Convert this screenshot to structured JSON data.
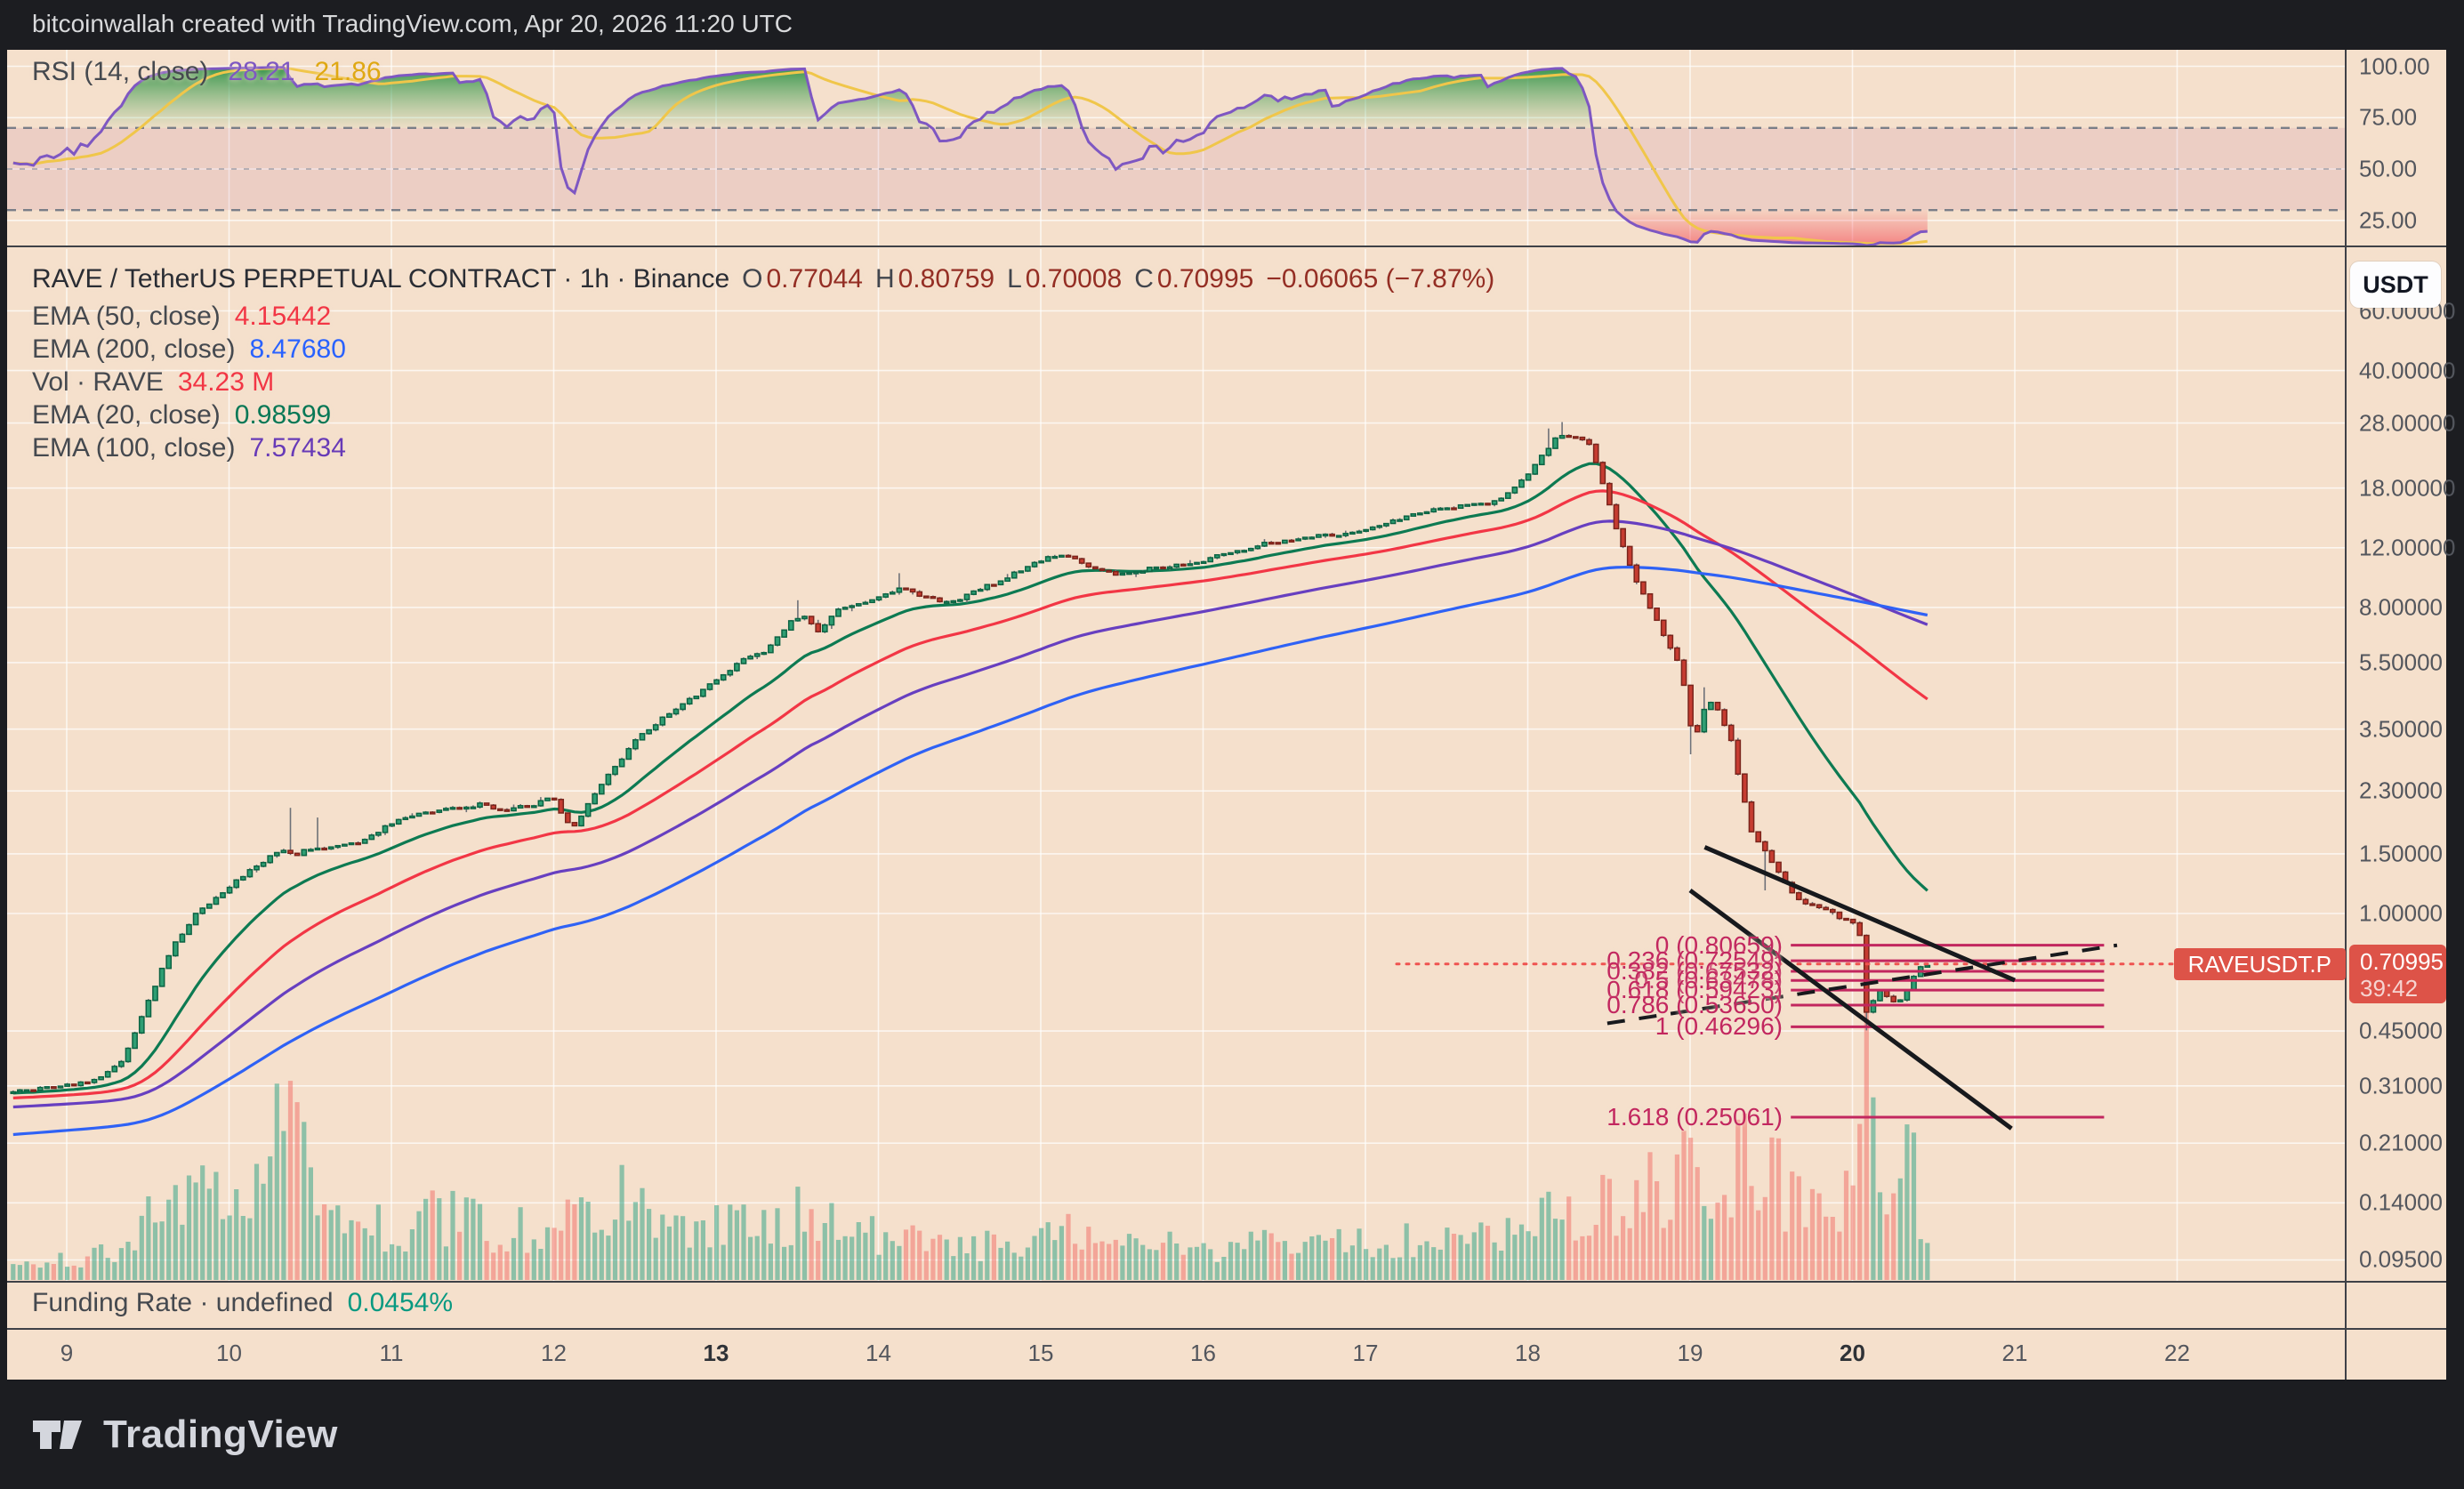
{
  "colors": {
    "panel": "#f5e0cc",
    "frame": "#1c1d21",
    "grid": "rgba(255,255,255,0.7)",
    "sep": "#3f4147",
    "up": "#2f9e73",
    "up_border": "#0c6343",
    "down": "#c63c31",
    "down_border": "#7a241b",
    "wick": "#6e7178",
    "vol_up": "rgba(54,166,137,0.55)",
    "vol_down": "rgba(240,116,110,0.55)",
    "rsi_line": "#7e57c2",
    "rsi_ma": "#f0c64a",
    "rsi_band": "rgba(171,80,141,0.12)",
    "rsi_levels": "#7a7e88",
    "fib": "#c2275f",
    "price_line": "#ef5350",
    "badge": "#dd5348",
    "axis_text": "#53565d",
    "legend_text": "#45494f",
    "title_text": "#2a2d34",
    "ohlc_value": "#942e24",
    "funding_green": "#089981"
  },
  "top_bar": {
    "text": "bitcoinwallah created with TradingView.com, Apr 20, 2026 11:20 UTC"
  },
  "rsi_pane": {
    "legend_label": "RSI (14, close)",
    "value": "28.21",
    "ma_value": "21.86",
    "axis_labels": [
      {
        "text": "100.00",
        "value": 100
      },
      {
        "text": "75.00",
        "value": 75
      },
      {
        "text": "50.00",
        "value": 50
      },
      {
        "text": "25.00",
        "value": 25
      }
    ]
  },
  "main_pane": {
    "legend_title": "RAVE / TetherUS PERPETUAL CONTRACT · 1h · Binance",
    "ohlc_items": [
      {
        "k": "O",
        "v": "0.77044"
      },
      {
        "k": "H",
        "v": "0.80759"
      },
      {
        "k": "L",
        "v": "0.70008"
      },
      {
        "k": "C",
        "v": "0.70995"
      }
    ],
    "change": "−0.06065 (−7.87%)",
    "indicators": [
      {
        "label": "EMA (50, close)",
        "value": "4.15442",
        "color": "#f23645"
      },
      {
        "label": "EMA (200, close)",
        "value": "8.47680",
        "color": "#2962ff"
      },
      {
        "label": "Vol · RAVE",
        "value": "34.23 M",
        "color": "#f23645"
      },
      {
        "label": "EMA (20, close)",
        "value": "0.98599",
        "color": "#087856"
      },
      {
        "label": "EMA (100, close)",
        "value": "7.57434",
        "color": "#673ab7"
      }
    ],
    "price_axis_labels": [
      {
        "text": "60.00000",
        "price": 60
      },
      {
        "text": "40.00000",
        "price": 40
      },
      {
        "text": "28.00000",
        "price": 28
      },
      {
        "text": "18.00000",
        "price": 18
      },
      {
        "text": "12.00000",
        "price": 12
      },
      {
        "text": "8.00000",
        "price": 8
      },
      {
        "text": "5.50000",
        "price": 5.5
      },
      {
        "text": "3.50000",
        "price": 3.5
      },
      {
        "text": "2.30000",
        "price": 2.3
      },
      {
        "text": "1.50000",
        "price": 1.5
      },
      {
        "text": "1.00000",
        "price": 1
      },
      {
        "text": "0.45000",
        "price": 0.45
      },
      {
        "text": "0.31000",
        "price": 0.31
      },
      {
        "text": "0.21000",
        "price": 0.21
      },
      {
        "text": "0.14000",
        "price": 0.14
      },
      {
        "text": "0.09500",
        "price": 0.095
      }
    ],
    "currency_button": "USDT",
    "symbol_badge": "RAVEUSDT.P",
    "price_badge": {
      "price": "0.70995",
      "countdown": "39:42"
    }
  },
  "funding_pane": {
    "label": "Funding Rate · undefined",
    "value": "0.0454%"
  },
  "time_axis": {
    "ticks": [
      {
        "label": "9",
        "day": 9
      },
      {
        "label": "10",
        "day": 10
      },
      {
        "label": "11",
        "day": 11
      },
      {
        "label": "12",
        "day": 12
      },
      {
        "label": "13",
        "day": 13,
        "bold": true
      },
      {
        "label": "14",
        "day": 14
      },
      {
        "label": "15",
        "day": 15
      },
      {
        "label": "16",
        "day": 16
      },
      {
        "label": "17",
        "day": 17
      },
      {
        "label": "18",
        "day": 18
      },
      {
        "label": "19",
        "day": 19
      },
      {
        "label": "20",
        "day": 20,
        "bold": true
      },
      {
        "label": "21",
        "day": 21
      },
      {
        "label": "22",
        "day": 22
      }
    ]
  },
  "footer": {
    "brand": "TradingView"
  },
  "chart_data": {
    "type": "candlestick",
    "symbol": "RAVE / TetherUS PERPETUAL CONTRACT (RAVEUSDT.P)",
    "exchange": "Binance",
    "interval": "1h",
    "price_scale": "logarithmic",
    "x_unit": "day_of_month_april_2026",
    "x_range": [
      8.67,
      20.47
    ],
    "visible_price_range": [
      0.085,
      70
    ],
    "current": {
      "open": 0.77044,
      "high": 0.80759,
      "low": 0.70008,
      "close": 0.70995,
      "change": -0.06065,
      "change_pct": -7.87,
      "volume_m": 34.23,
      "countdown": "39:42"
    },
    "close_path_anchors": [
      [
        8.67,
        0.3
      ],
      [
        9.0,
        0.31
      ],
      [
        9.2,
        0.325
      ],
      [
        9.35,
        0.37
      ],
      [
        9.5,
        0.55
      ],
      [
        9.65,
        0.8
      ],
      [
        9.8,
        1.0
      ],
      [
        10.0,
        1.2
      ],
      [
        10.2,
        1.42
      ],
      [
        10.35,
        1.55
      ],
      [
        10.4,
        1.47
      ],
      [
        10.48,
        1.56
      ],
      [
        10.6,
        1.55
      ],
      [
        10.8,
        1.62
      ],
      [
        11.0,
        1.85
      ],
      [
        11.2,
        2.0
      ],
      [
        11.4,
        2.05
      ],
      [
        11.55,
        2.1
      ],
      [
        11.7,
        2.02
      ],
      [
        11.85,
        2.08
      ],
      [
        12.0,
        2.2
      ],
      [
        12.06,
        1.9
      ],
      [
        12.12,
        1.78
      ],
      [
        12.2,
        2.05
      ],
      [
        12.35,
        2.6
      ],
      [
        12.5,
        3.25
      ],
      [
        12.7,
        3.85
      ],
      [
        12.85,
        4.3
      ],
      [
        13.0,
        4.9
      ],
      [
        13.15,
        5.55
      ],
      [
        13.3,
        5.9
      ],
      [
        13.45,
        7.2
      ],
      [
        13.55,
        7.6
      ],
      [
        13.62,
        6.7
      ],
      [
        13.75,
        7.8
      ],
      [
        13.9,
        8.3
      ],
      [
        14.0,
        8.6
      ],
      [
        14.15,
        9.2
      ],
      [
        14.3,
        8.5
      ],
      [
        14.45,
        8.3
      ],
      [
        14.6,
        8.9
      ],
      [
        14.8,
        9.9
      ],
      [
        15.0,
        11.0
      ],
      [
        15.15,
        11.6
      ],
      [
        15.3,
        10.6
      ],
      [
        15.45,
        10.0
      ],
      [
        15.6,
        10.3
      ],
      [
        15.8,
        10.6
      ],
      [
        16.0,
        11.0
      ],
      [
        16.2,
        11.7
      ],
      [
        16.4,
        12.4
      ],
      [
        16.6,
        12.8
      ],
      [
        16.8,
        13.1
      ],
      [
        17.0,
        13.6
      ],
      [
        17.2,
        14.6
      ],
      [
        17.4,
        15.5
      ],
      [
        17.6,
        15.9
      ],
      [
        17.8,
        16.4
      ],
      [
        17.95,
        18.5
      ],
      [
        18.1,
        23.0
      ],
      [
        18.2,
        26.0
      ],
      [
        18.3,
        25.5
      ],
      [
        18.38,
        24.5
      ],
      [
        18.45,
        19.5
      ],
      [
        18.55,
        13.5
      ],
      [
        18.65,
        10.0
      ],
      [
        18.75,
        8.0
      ],
      [
        18.85,
        6.5
      ],
      [
        18.95,
        5.2
      ],
      [
        19.0,
        3.6
      ],
      [
        19.05,
        3.4
      ],
      [
        19.1,
        4.3
      ],
      [
        19.17,
        4.0
      ],
      [
        19.25,
        3.3
      ],
      [
        19.3,
        2.5
      ],
      [
        19.38,
        1.75
      ],
      [
        19.45,
        1.55
      ],
      [
        19.55,
        1.3
      ],
      [
        19.65,
        1.12
      ],
      [
        19.75,
        1.05
      ],
      [
        19.85,
        1.02
      ],
      [
        19.95,
        0.96
      ],
      [
        20.0,
        0.95
      ],
      [
        20.04,
        0.92
      ],
      [
        20.08,
        0.5
      ],
      [
        20.13,
        0.56
      ],
      [
        20.18,
        0.6
      ],
      [
        20.23,
        0.55
      ],
      [
        20.28,
        0.54
      ],
      [
        20.33,
        0.58
      ],
      [
        20.38,
        0.66
      ],
      [
        20.43,
        0.7
      ],
      [
        20.47,
        0.71
      ]
    ],
    "volume_anchors_m": [
      [
        8.7,
        25
      ],
      [
        9.3,
        42
      ],
      [
        9.5,
        98
      ],
      [
        9.8,
        133
      ],
      [
        10.1,
        119
      ],
      [
        10.4,
        280
      ],
      [
        10.6,
        112
      ],
      [
        11.0,
        77
      ],
      [
        11.3,
        105
      ],
      [
        11.6,
        84
      ],
      [
        12.0,
        77
      ],
      [
        12.2,
        112
      ],
      [
        12.5,
        133
      ],
      [
        12.8,
        98
      ],
      [
        13.0,
        91
      ],
      [
        13.3,
        84
      ],
      [
        13.5,
        105
      ],
      [
        13.8,
        77
      ],
      [
        14.0,
        70
      ],
      [
        14.3,
        63
      ],
      [
        14.6,
        56
      ],
      [
        15.0,
        70
      ],
      [
        15.3,
        77
      ],
      [
        15.6,
        56
      ],
      [
        16.0,
        49
      ],
      [
        16.3,
        56
      ],
      [
        16.6,
        53
      ],
      [
        17.0,
        59
      ],
      [
        17.3,
        63
      ],
      [
        17.6,
        56
      ],
      [
        17.9,
        77
      ],
      [
        18.1,
        105
      ],
      [
        18.3,
        98
      ],
      [
        18.5,
        133
      ],
      [
        18.7,
        154
      ],
      [
        18.9,
        168
      ],
      [
        19.0,
        224
      ],
      [
        19.1,
        168
      ],
      [
        19.3,
        203
      ],
      [
        19.45,
        182
      ],
      [
        19.6,
        140
      ],
      [
        19.75,
        112
      ],
      [
        19.9,
        126
      ],
      [
        20.0,
        133
      ],
      [
        20.06,
        196
      ],
      [
        20.083,
        437
      ],
      [
        20.12,
        210
      ],
      [
        20.25,
        140
      ],
      [
        20.35,
        245
      ],
      [
        20.47,
        34
      ]
    ],
    "volume_spikes": [
      {
        "day": 10.44,
        "vol_m": 280
      },
      {
        "day": 19.0,
        "vol_m": 224
      },
      {
        "day": 20.083,
        "vol_m": 437
      },
      {
        "day": 20.35,
        "vol_m": 245
      }
    ],
    "wick_events": [
      {
        "day": 10.38,
        "type": "high",
        "price": 2.05
      },
      {
        "day": 10.55,
        "type": "high",
        "price": 1.92
      },
      {
        "day": 13.5,
        "type": "high",
        "price": 8.4
      },
      {
        "day": 14.12,
        "type": "high",
        "price": 10.1
      },
      {
        "day": 18.12,
        "type": "high",
        "price": 27.0
      },
      {
        "day": 18.2,
        "type": "high",
        "price": 28.2
      },
      {
        "day": 19.0,
        "type": "low",
        "price": 2.95
      },
      {
        "day": 19.08,
        "type": "high",
        "price": 4.65
      },
      {
        "day": 19.45,
        "type": "low",
        "price": 1.17
      },
      {
        "day": 20.083,
        "type": "low",
        "price": 0.452
      }
    ],
    "emas": [
      {
        "period": 20,
        "color": "#0d7a52",
        "init": 0.295,
        "last": 0.98599
      },
      {
        "period": 50,
        "color": "#f23645",
        "init": 0.285,
        "last": 4.15442
      },
      {
        "period": 100,
        "color": "#673fc0",
        "init": 0.268,
        "last": 7.57434
      },
      {
        "period": 200,
        "color": "#2f62f5",
        "init": 0.222,
        "last": 8.4768
      }
    ],
    "rsi": {
      "period": 14,
      "current": 28.21,
      "ma_current": 21.86,
      "overbought": 70,
      "oversold": 30
    },
    "fib_retracement": {
      "from_price": 0.80659,
      "to_price": 0.46296,
      "x_span_days": [
        19.62,
        21.55
      ],
      "levels": [
        {
          "label": "0 (0.80659)",
          "level": 0,
          "price": 0.80659
        },
        {
          "label": "0.236 (0.72549)",
          "level": 0.236,
          "price": 0.72549
        },
        {
          "label": "0.382 (0.67532)",
          "level": 0.382,
          "price": 0.67532
        },
        {
          "label": "0.5 (0.63478)",
          "level": 0.5,
          "price": 0.63478
        },
        {
          "label": "0.618 (0.59423)",
          "level": 0.618,
          "price": 0.59423
        },
        {
          "label": "0.786 (0.53650)",
          "level": 0.786,
          "price": 0.5365
        },
        {
          "label": "1 (0.46296)",
          "level": 1,
          "price": 0.46296
        },
        {
          "label": "1.618 (0.25061)",
          "level": 1.618,
          "price": 0.25061
        }
      ]
    },
    "trendlines": [
      {
        "type": "resistance",
        "style": "solid",
        "points_day_price": [
          [
            19.09,
            1.57
          ],
          [
            21.0,
            0.635
          ]
        ]
      },
      {
        "type": "support",
        "style": "solid",
        "points_day_price": [
          [
            19.0,
            1.17
          ],
          [
            20.98,
            0.232
          ]
        ]
      },
      {
        "type": "support",
        "style": "dashed",
        "points_day_price": [
          [
            18.49,
            0.474
          ],
          [
            21.63,
            0.806
          ]
        ]
      }
    ],
    "price_line": {
      "price": 0.70995,
      "style": "dotted"
    },
    "funding_rate_pct": 0.0454
  }
}
